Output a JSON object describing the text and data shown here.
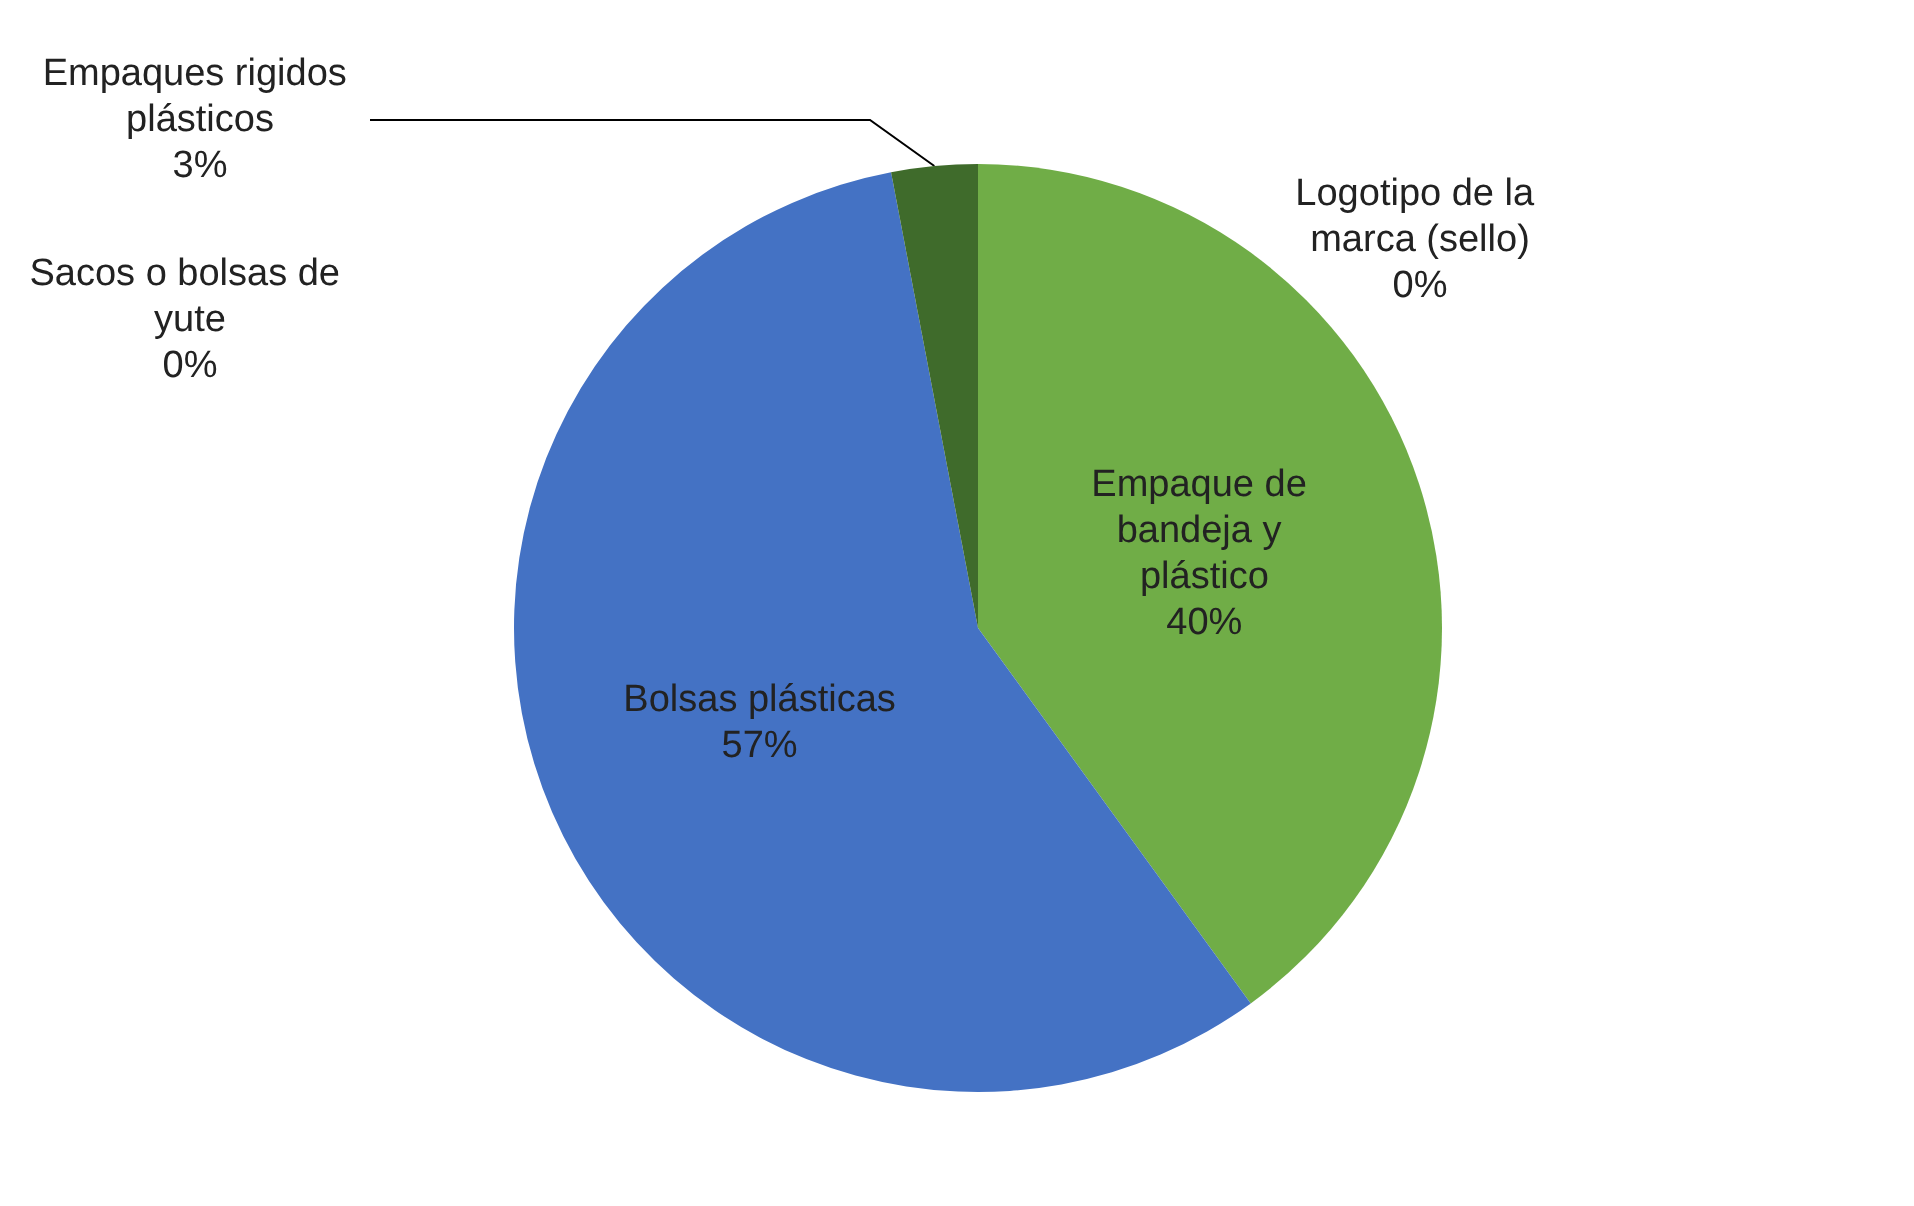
{
  "chart_data": {
    "type": "pie",
    "categories": [
      "Logotipo de la marca (sello)",
      "Empaque de bandeja y plástico",
      "Bolsas plásticas",
      "Sacos o bolsas de yute",
      "Empaques rigidos plásticos"
    ],
    "values": [
      0,
      40,
      57,
      0,
      3
    ],
    "colors": [
      "#a5a5a5",
      "#70ad47",
      "#4472c4",
      "#ffc000",
      "#3f6b2b"
    ],
    "value_labels": [
      "0%",
      "40%",
      "57%",
      "0%",
      "3%"
    ]
  }
}
